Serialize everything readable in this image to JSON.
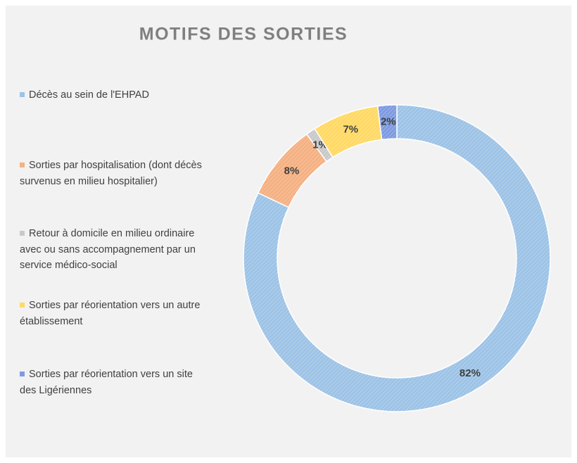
{
  "chart_data": {
    "type": "donut",
    "title": "MOTIFS DES SORTIES",
    "categories": [
      "Décès au sein de l'EHPAD",
      "Sorties par hospitalisation (dont décès survenus en milieu hospitalier)",
      "Retour à domicile en milieu ordinaire avec ou sans accompagnement par un service médico-social",
      "Sorties par réorientation vers un autre établissement",
      "Sorties par réorientation vers un site des Ligériennes"
    ],
    "values": [
      82,
      8,
      1,
      7,
      2
    ],
    "value_labels": [
      "82%",
      "8%",
      "1%",
      "7%",
      "2%"
    ],
    "colors": [
      "#9dc3e6",
      "#f4b183",
      "#c9c9c9",
      "#ffd966",
      "#7f9be0"
    ],
    "legend": "left"
  }
}
